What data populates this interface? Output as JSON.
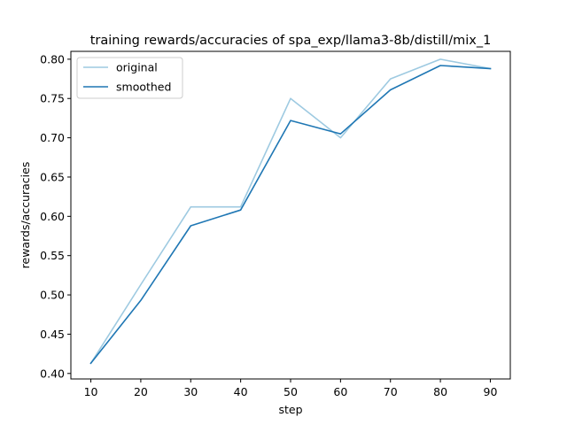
{
  "chart_data": {
    "type": "line",
    "title": "training rewards/accuracies of spa_exp/llama3-8b/distill/mix_1",
    "xlabel": "step",
    "ylabel": "rewards/accuracies",
    "x": [
      10,
      20,
      30,
      40,
      50,
      60,
      70,
      80,
      90
    ],
    "xticks": [
      "10",
      "20",
      "30",
      "40",
      "50",
      "60",
      "70",
      "80",
      "90"
    ],
    "yticks": [
      "0.40",
      "0.45",
      "0.50",
      "0.55",
      "0.60",
      "0.65",
      "0.70",
      "0.75",
      "0.80"
    ],
    "xlim": [
      6,
      94
    ],
    "ylim": [
      0.393,
      0.81
    ],
    "grid": false,
    "legend_position": "top-left",
    "series": [
      {
        "name": "original",
        "color": "#9ecae1",
        "values": [
          0.413,
          0.513,
          0.612,
          0.612,
          0.75,
          0.7,
          0.775,
          0.8,
          0.788
        ]
      },
      {
        "name": "smoothed",
        "color": "#1f77b4",
        "values": [
          0.413,
          0.493,
          0.588,
          0.608,
          0.722,
          0.705,
          0.761,
          0.792,
          0.788
        ]
      }
    ]
  }
}
